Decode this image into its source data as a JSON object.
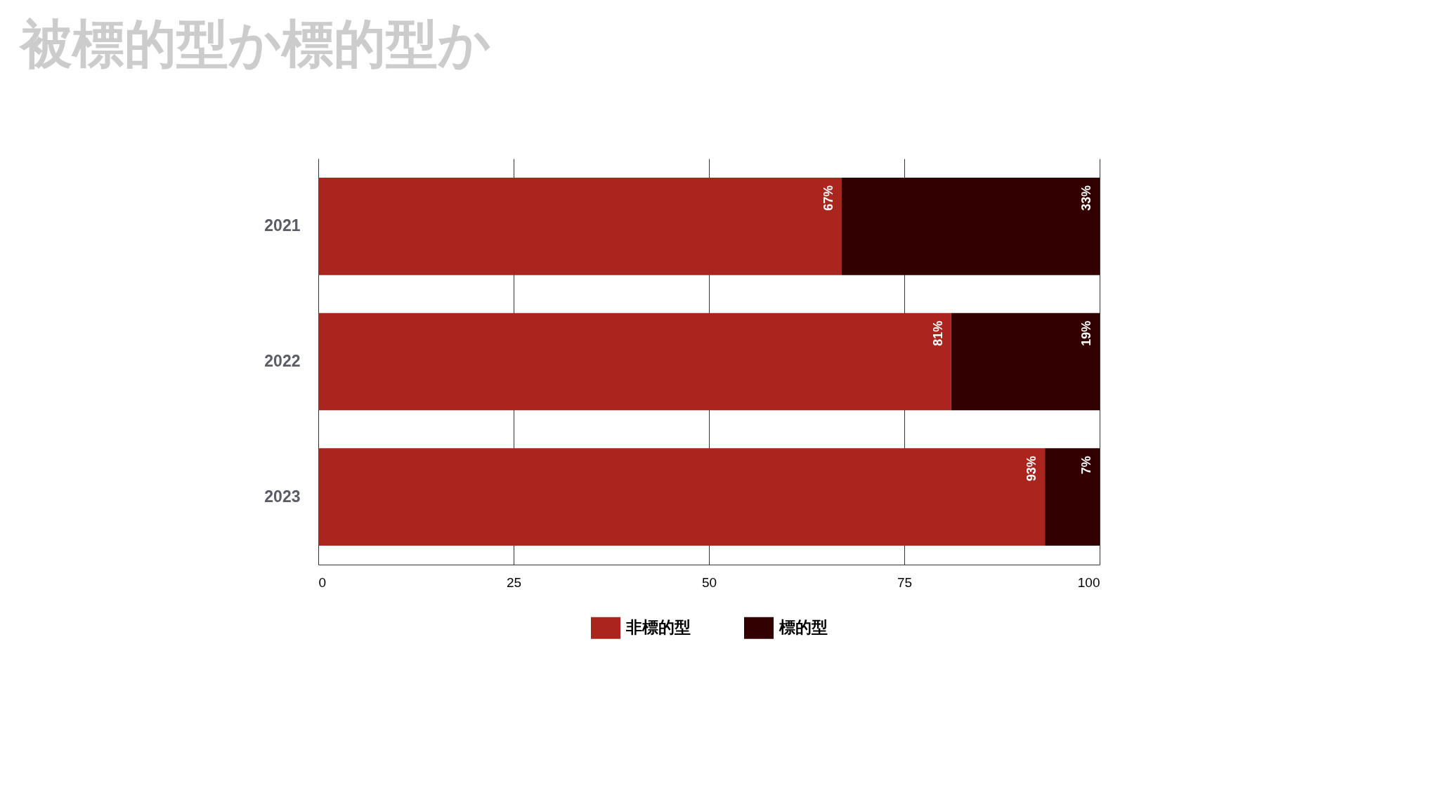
{
  "chart_data": {
    "type": "bar",
    "title": "被標的型か標的型か",
    "orientation": "horizontal",
    "stacked": true,
    "categories": [
      "2021",
      "2022",
      "2023"
    ],
    "series": [
      {
        "name": "非標的型",
        "color": "#ab251f",
        "values": [
          67,
          81,
          93
        ],
        "value_labels": [
          "67%",
          "81%",
          "93%"
        ]
      },
      {
        "name": "標的型",
        "color": "#330000",
        "values": [
          33,
          19,
          7
        ],
        "value_labels": [
          "33%",
          "19%",
          "7%"
        ]
      }
    ],
    "xlim": [
      0,
      100
    ],
    "xticks": [
      0,
      25,
      50,
      75,
      100
    ],
    "grid": "x",
    "legend": "bottom"
  }
}
